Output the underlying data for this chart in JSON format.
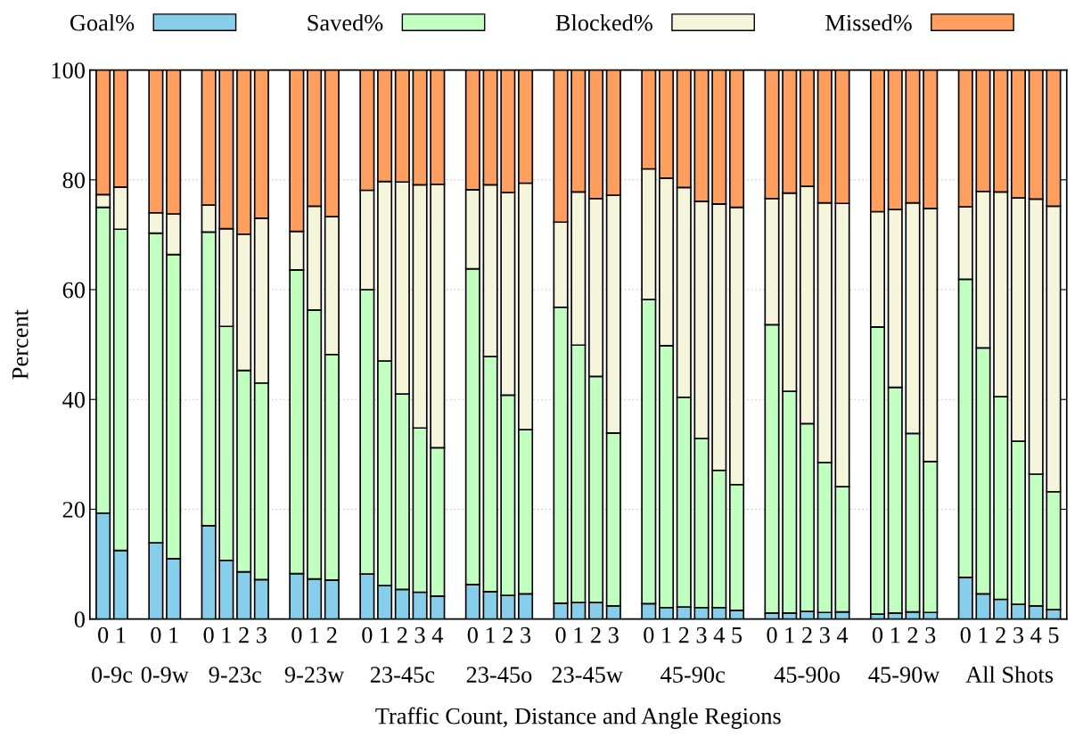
{
  "chart_data": {
    "type": "bar",
    "stacked": true,
    "xlabel": "Traffic Count, Distance and Angle Regions",
    "ylabel": "Percent",
    "annotations": [
      "0-9c",
      "0-9w",
      "9-23c",
      "9-23w",
      "23-45c",
      "23-45o",
      "23-45w",
      "45-90c",
      "45-90o",
      "45-90w",
      "All Shots"
    ],
    "legend": "top",
    "grid": true,
    "ylim": [
      0,
      100
    ],
    "yticks": [
      0,
      20,
      40,
      60,
      80,
      100
    ],
    "categories": [
      "0",
      "1",
      null,
      "0",
      "1",
      null,
      "0",
      "1",
      "2",
      "3",
      null,
      "0",
      "1",
      "2",
      null,
      "0",
      "1",
      "2",
      "3",
      "4",
      null,
      "0",
      "1",
      "2",
      "3",
      null,
      "0",
      "1",
      "2",
      "3",
      null,
      "0",
      "1",
      "2",
      "3",
      "4",
      "5",
      null,
      "0",
      "1",
      "2",
      "3",
      "4",
      null,
      "0",
      "1",
      "2",
      "3",
      null,
      "0",
      "1",
      "2",
      "3",
      "4",
      "5"
    ],
    "series": [
      {
        "name": "Goal%",
        "color": "#87ceeb",
        "values": [
          19.3,
          12.5,
          null,
          13.9,
          11.0,
          null,
          17.0,
          10.7,
          8.6,
          7.2,
          null,
          8.3,
          7.3,
          7.1,
          null,
          8.2,
          6.1,
          5.4,
          4.9,
          4.2,
          null,
          6.3,
          5.0,
          4.3,
          4.6,
          null,
          2.9,
          3.0,
          3.0,
          2.4,
          null,
          2.8,
          2.1,
          2.2,
          2.1,
          2.1,
          1.6,
          null,
          1.1,
          1.1,
          1.4,
          1.2,
          1.3,
          null,
          0.9,
          1.1,
          1.3,
          1.2,
          null,
          7.6,
          4.6,
          3.6,
          2.7,
          2.4,
          1.7
        ]
      },
      {
        "name": "Saved%",
        "color": "#c1ffc1",
        "values": [
          55.7,
          58.5,
          null,
          56.4,
          55.4,
          null,
          53.5,
          42.6,
          36.7,
          35.8,
          null,
          55.3,
          49.0,
          41.1,
          null,
          51.8,
          40.9,
          35.6,
          29.9,
          27.0,
          null,
          57.5,
          42.8,
          36.5,
          29.9,
          null,
          53.9,
          46.9,
          41.2,
          31.5,
          null,
          55.4,
          47.7,
          38.2,
          30.8,
          25.0,
          22.9,
          null,
          52.5,
          40.4,
          34.2,
          27.3,
          22.8,
          null,
          52.3,
          41.1,
          32.5,
          27.5,
          null,
          54.3,
          44.8,
          36.9,
          29.7,
          24.0,
          21.5
        ]
      },
      {
        "name": "Blocked%",
        "color": "#f5f5dc",
        "values": [
          2.3,
          7.7,
          null,
          3.7,
          7.4,
          null,
          4.9,
          17.8,
          24.8,
          30.0,
          null,
          7.0,
          18.9,
          25.1,
          null,
          18.1,
          32.7,
          38.6,
          44.3,
          48.0,
          null,
          14.4,
          31.3,
          36.9,
          44.9,
          null,
          15.5,
          27.9,
          32.4,
          43.3,
          null,
          23.8,
          30.5,
          38.2,
          43.2,
          48.5,
          50.5,
          null,
          23.0,
          36.1,
          43.2,
          47.3,
          51.6,
          null,
          21.0,
          32.4,
          42.0,
          46.1,
          null,
          13.2,
          28.5,
          37.3,
          44.3,
          50.1,
          52.0
        ]
      },
      {
        "name": "Missed%",
        "color": "#ff9f5f",
        "values": [
          22.7,
          21.3,
          null,
          26.0,
          26.2,
          null,
          24.6,
          28.9,
          29.9,
          27.0,
          null,
          29.4,
          24.8,
          26.7,
          null,
          21.9,
          20.3,
          20.4,
          20.9,
          20.8,
          null,
          21.8,
          20.9,
          22.3,
          20.6,
          null,
          27.7,
          22.2,
          23.4,
          22.8,
          null,
          18.0,
          19.7,
          21.4,
          23.9,
          24.4,
          25.0,
          null,
          23.4,
          22.4,
          21.2,
          24.2,
          24.3,
          null,
          25.8,
          25.4,
          24.2,
          25.2,
          null,
          24.9,
          22.1,
          22.2,
          23.3,
          23.5,
          24.8
        ]
      }
    ]
  }
}
